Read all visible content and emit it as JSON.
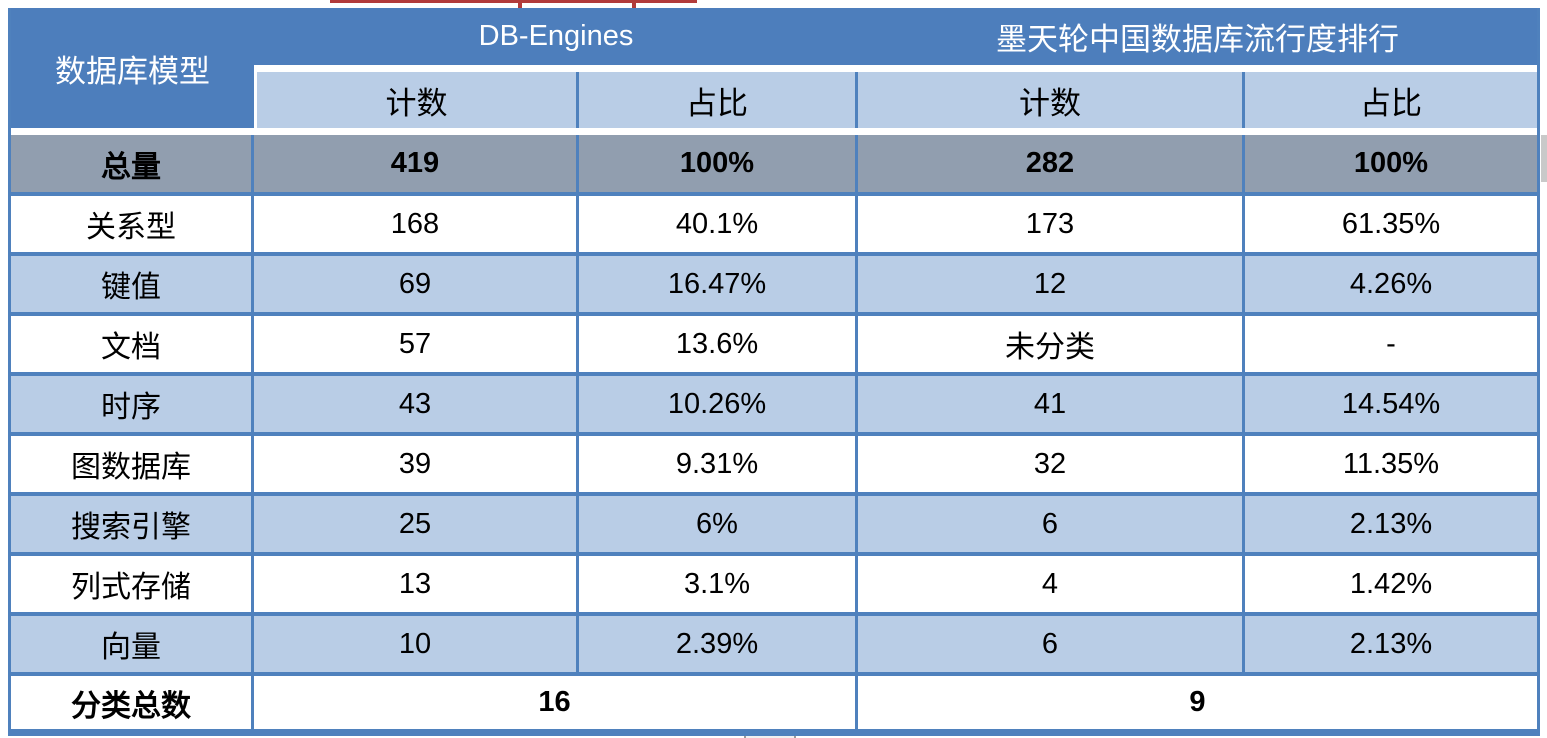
{
  "header": {
    "corner": "数据库模型",
    "groups": [
      {
        "title": "DB-Engines",
        "sub": [
          "计数",
          "占比"
        ]
      },
      {
        "title": "墨天轮中国数据库流行度排行",
        "sub": [
          "计数",
          "占比"
        ]
      }
    ]
  },
  "chart_data": {
    "type": "table",
    "columns": [
      "数据库模型",
      "DB-Engines 计数",
      "DB-Engines 占比",
      "墨天轮中国数据库流行度排行 计数",
      "墨天轮中国数据库流行度排行 占比"
    ],
    "rows": [
      [
        "总量",
        "419",
        "100%",
        "282",
        "100%"
      ],
      [
        "关系型",
        "168",
        "40.1%",
        "173",
        "61.35%"
      ],
      [
        "键值",
        "69",
        "16.47%",
        "12",
        "4.26%"
      ],
      [
        "文档",
        "57",
        "13.6%",
        "未分类",
        "-"
      ],
      [
        "时序",
        "43",
        "10.26%",
        "41",
        "14.54%"
      ],
      [
        "图数据库",
        "39",
        "9.31%",
        "32",
        "11.35%"
      ],
      [
        "搜索引擎",
        "25",
        "6%",
        "6",
        "2.13%"
      ],
      [
        "列式存储",
        "13",
        "3.1%",
        "4",
        "1.42%"
      ],
      [
        "向量",
        "10",
        "2.39%",
        "6",
        "2.13%"
      ]
    ],
    "footer_row": [
      "分类总数",
      "16",
      "9"
    ],
    "layout_hints": {
      "total_row_emphasized": true,
      "alternating_row_shading": true,
      "footer_values_merged_per_group": true
    }
  },
  "colors": {
    "header_blue": "#4d7ebc",
    "subheader_light_blue": "#b9cde6",
    "total_row_gray": "#919eaf",
    "alt_row_light_blue": "#b9cde6",
    "border_blue": "#4f81bd",
    "header_text": "#ffffff",
    "body_text": "#000000",
    "cropped_underline_red": "#b23b3b"
  }
}
